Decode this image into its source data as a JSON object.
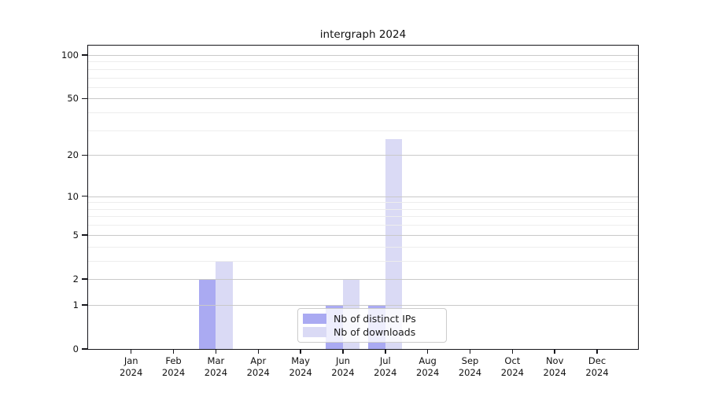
{
  "chart_data": {
    "type": "bar",
    "title": "intergraph 2024",
    "categories": [
      "Jan",
      "Feb",
      "Mar",
      "Apr",
      "May",
      "Jun",
      "Jul",
      "Aug",
      "Sep",
      "Oct",
      "Nov",
      "Dec"
    ],
    "year_label": "2024",
    "series": [
      {
        "name": "Nb of distinct IPs",
        "color": "#aaaaf2",
        "values": [
          0,
          0,
          2,
          0,
          0,
          1,
          1,
          0,
          0,
          0,
          0,
          0
        ]
      },
      {
        "name": "Nb of downloads",
        "color": "#dadaf5",
        "values": [
          0,
          0,
          3,
          0,
          0,
          2,
          26,
          0,
          0,
          0,
          0,
          0
        ]
      }
    ],
    "yscale": "log1p",
    "y_major_ticks": [
      0,
      1,
      2,
      5,
      10,
      20,
      50,
      100
    ],
    "y_minor_gridlines": [
      3,
      4,
      6,
      7,
      8,
      9,
      30,
      40,
      60,
      70,
      80,
      90
    ],
    "ylim": [
      0,
      116
    ],
    "grid": true,
    "legend_position": "bottom-center",
    "colors": {
      "major_grid": "#c9c9c9",
      "minor_grid": "#ededed",
      "axis": "#15151a",
      "background": "#ffffff"
    }
  }
}
